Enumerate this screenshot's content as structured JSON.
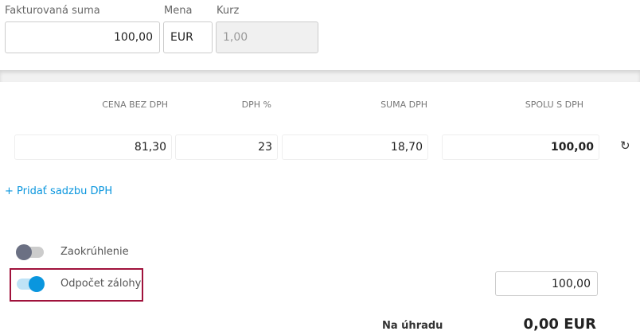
{
  "invoice": {
    "amount_label": "Fakturovaná suma",
    "amount_value": "100,00",
    "currency_label": "Mena",
    "currency_value": "EUR",
    "rate_label": "Kurz",
    "rate_value": "1,00"
  },
  "vat_table": {
    "headers": [
      "CENA BEZ DPH",
      "DPH %",
      "SUMA DPH",
      "SPOLU S DPH"
    ],
    "rows": [
      {
        "base": "81,30",
        "rate": "23",
        "vat": "18,70",
        "total": "100,00"
      }
    ],
    "refresh_icon": "refresh-icon",
    "add_rate_label": "+ Pridať sadzbu DPH"
  },
  "toggles": {
    "rounding": {
      "label": "Zaokrúhlenie",
      "on": false
    },
    "advance": {
      "label": "Odpočet zálohy",
      "on": true,
      "value": "100,00"
    }
  },
  "summary": {
    "label": "Na úhradu",
    "value": "0,00 EUR"
  },
  "colors": {
    "accent": "#0a96de",
    "highlight": "#a0123c"
  }
}
